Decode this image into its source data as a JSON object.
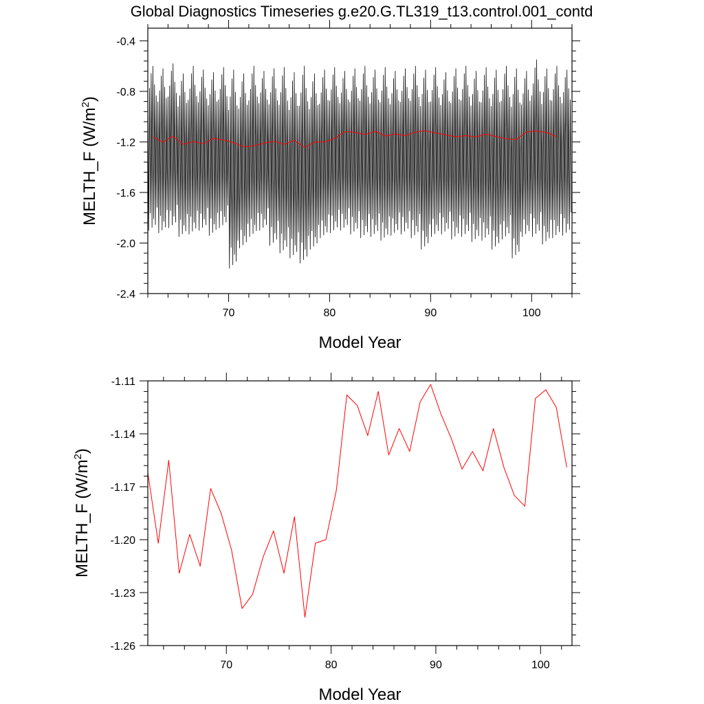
{
  "page": {
    "title": "Global Diagnostics Timeseries g.e20.G.TL319_t13.control.001_contd"
  },
  "chart_data": [
    {
      "type": "line",
      "title": "Global Diagnostics Timeseries g.e20.G.TL319_t13.control.001_contd",
      "xlabel": "Model Year",
      "ylabel": "MELTH_F (W/m",
      "ylabel_sup": "2",
      "ylabel_close": ")",
      "xlim": [
        62,
        104
      ],
      "ylim": [
        -2.4,
        -0.3
      ],
      "xticks": [
        70,
        80,
        90,
        100
      ],
      "xtick_labels": [
        "70",
        "80",
        "90",
        "100"
      ],
      "yticks": [
        -0.4,
        -0.8,
        -1.2,
        -1.6,
        -2.0,
        -2.4
      ],
      "ytick_labels": [
        "-0.4",
        "-0.8",
        "-1.2",
        "-1.6",
        "-2.0",
        "-2.4"
      ],
      "grid": false,
      "series": [
        {
          "color": "#000000",
          "monthly": true,
          "start_year": 62,
          "peaks": [
            -0.6,
            -0.62,
            -0.58,
            -0.66,
            -0.6,
            -0.63,
            -0.65,
            -0.61,
            -0.63,
            -0.66,
            -0.6,
            -0.64,
            -0.62,
            -0.61,
            -0.65,
            -0.6,
            -0.66,
            -0.63,
            -0.61,
            -0.64,
            -0.62,
            -0.6,
            -0.63,
            -0.61,
            -0.64,
            -0.62,
            -0.6,
            -0.63,
            -0.61,
            -0.65,
            -0.62,
            -0.6,
            -0.64,
            -0.61,
            -0.63,
            -0.6,
            -0.62,
            -0.64,
            -0.55,
            -0.62,
            -0.6,
            -0.63
          ],
          "troughs": [
            -1.9,
            -1.92,
            -1.88,
            -1.95,
            -1.93,
            -1.9,
            -1.94,
            -1.88,
            -2.2,
            -2.04,
            -1.95,
            -1.9,
            -2.02,
            -2.08,
            -2.12,
            -2.16,
            -2.05,
            -1.96,
            -1.92,
            -1.9,
            -1.93,
            -1.96,
            -1.95,
            -1.98,
            -1.94,
            -1.93,
            -1.96,
            -2.05,
            -1.95,
            -1.93,
            -1.97,
            -1.95,
            -1.99,
            -1.98,
            -2.05,
            -1.97,
            -2.12,
            -1.95,
            -1.95,
            -2.01,
            -1.96,
            -1.94
          ]
        },
        {
          "color": "#ff0000",
          "x": [
            62.5,
            63.5,
            64.5,
            65.5,
            66.5,
            67.5,
            68.5,
            69.5,
            70.5,
            71.5,
            72.5,
            73.5,
            74.5,
            75.5,
            76.5,
            77.5,
            78.5,
            79.5,
            80.5,
            81.5,
            82.5,
            83.5,
            84.5,
            85.5,
            86.5,
            87.5,
            88.5,
            89.5,
            90.5,
            91.5,
            92.5,
            93.5,
            94.5,
            95.5,
            96.5,
            97.5,
            98.5,
            99.5,
            100.5,
            101.5,
            102.5
          ],
          "y": [
            -1.162,
            -1.202,
            -1.155,
            -1.219,
            -1.197,
            -1.215,
            -1.171,
            -1.185,
            -1.206,
            -1.239,
            -1.231,
            -1.21,
            -1.195,
            -1.219,
            -1.187,
            -1.244,
            -1.202,
            -1.2,
            -1.172,
            -1.118,
            -1.124,
            -1.141,
            -1.116,
            -1.152,
            -1.137,
            -1.15,
            -1.122,
            -1.112,
            -1.129,
            -1.143,
            -1.16,
            -1.15,
            -1.161,
            -1.137,
            -1.159,
            -1.175,
            -1.181,
            -1.12,
            -1.115,
            -1.125,
            -1.159
          ]
        }
      ]
    },
    {
      "type": "line",
      "xlabel": "Model Year",
      "ylabel": "MELTH_F (W/m",
      "ylabel_sup": "2",
      "ylabel_close": ")",
      "xlim": [
        62.5,
        103
      ],
      "ylim": [
        -1.26,
        -1.11
      ],
      "xticks": [
        70,
        80,
        90,
        100
      ],
      "xtick_labels": [
        "70",
        "80",
        "90",
        "100"
      ],
      "yticks": [
        -1.11,
        -1.14,
        -1.17,
        -1.2,
        -1.23,
        -1.26
      ],
      "ytick_labels": [
        "-1.11",
        "-1.14",
        "-1.17",
        "-1.20",
        "-1.23",
        "-1.26"
      ],
      "grid": false,
      "series": [
        {
          "color": "#ff0000",
          "x": [
            62.5,
            63.5,
            64.5,
            65.5,
            66.5,
            67.5,
            68.5,
            69.5,
            70.5,
            71.5,
            72.5,
            73.5,
            74.5,
            75.5,
            76.5,
            77.5,
            78.5,
            79.5,
            80.5,
            81.5,
            82.5,
            83.5,
            84.5,
            85.5,
            86.5,
            87.5,
            88.5,
            89.5,
            90.5,
            91.5,
            92.5,
            93.5,
            94.5,
            95.5,
            96.5,
            97.5,
            98.5,
            99.5,
            100.5,
            101.5,
            102.5
          ],
          "y": [
            -1.162,
            -1.202,
            -1.155,
            -1.219,
            -1.197,
            -1.215,
            -1.171,
            -1.185,
            -1.206,
            -1.239,
            -1.231,
            -1.21,
            -1.195,
            -1.219,
            -1.187,
            -1.244,
            -1.202,
            -1.2,
            -1.172,
            -1.118,
            -1.124,
            -1.141,
            -1.116,
            -1.152,
            -1.137,
            -1.15,
            -1.122,
            -1.112,
            -1.129,
            -1.143,
            -1.16,
            -1.15,
            -1.161,
            -1.137,
            -1.159,
            -1.175,
            -1.181,
            -1.12,
            -1.115,
            -1.125,
            -1.159
          ]
        }
      ]
    }
  ]
}
